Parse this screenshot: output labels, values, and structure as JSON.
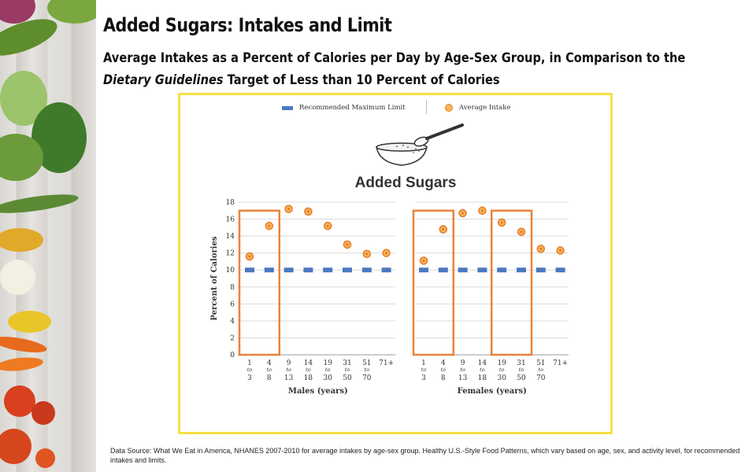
{
  "title": "Added Sugars: Intakes and Limit",
  "subtitle_pre": "Average Intakes as a Percent of Calories per Day by Age-Sex Group, in Comparison to the ",
  "subtitle_em": "Dietary Guidelines",
  "subtitle_post": " Target of Less than 10 Percent of Calories",
  "legend": {
    "limit": "Recommended Maximum Limit",
    "intake": "Average Intake"
  },
  "source_note": "Data Source: What We Eat in America, NHANES 2007-2010 for average intakes by age-sex group. Healthy U.S.-Style Food Patterns, which vary based on age, sex, and activity level, for recommended intakes and limits.",
  "colors": {
    "limit": "#4a78c2",
    "intake_fill": "#f8b65e",
    "intake_stroke": "#e47b24",
    "highlight": "#e9833a",
    "frame": "#f7df43"
  },
  "chart_data": {
    "type": "scatter",
    "title": "Added Sugars",
    "ylabel": "Percent of Calories",
    "ylim": [
      0,
      18
    ],
    "yticks": [
      0,
      2,
      4,
      6,
      8,
      10,
      12,
      14,
      16,
      18
    ],
    "grid": true,
    "limit_value": 10,
    "panels": [
      {
        "xlabel": "Males (years)",
        "categories": [
          [
            "1",
            "to",
            "3"
          ],
          [
            "4",
            "to",
            "8"
          ],
          [
            "9",
            "to",
            "13"
          ],
          [
            "14",
            "to",
            "18"
          ],
          [
            "19",
            "to",
            "30"
          ],
          [
            "31",
            "to",
            "50"
          ],
          [
            "51",
            "to",
            "70"
          ],
          [
            "71+",
            "",
            ""
          ]
        ],
        "intake": [
          11.6,
          15.2,
          17.2,
          16.9,
          15.2,
          13.0,
          11.9,
          12.0
        ],
        "limit": [
          10,
          10,
          10,
          10,
          10,
          10,
          10,
          10
        ],
        "highlight_groups": [
          [
            0,
            1
          ]
        ]
      },
      {
        "xlabel": "Females (years)",
        "categories": [
          [
            "1",
            "to",
            "3"
          ],
          [
            "4",
            "to",
            "8"
          ],
          [
            "9",
            "to",
            "13"
          ],
          [
            "14",
            "to",
            "18"
          ],
          [
            "19",
            "to",
            "30"
          ],
          [
            "31",
            "to",
            "50"
          ],
          [
            "51",
            "to",
            "70"
          ],
          [
            "71+",
            "",
            ""
          ]
        ],
        "intake": [
          11.1,
          14.8,
          16.7,
          17.0,
          15.6,
          14.5,
          12.5,
          12.3
        ],
        "limit": [
          10,
          10,
          10,
          10,
          10,
          10,
          10,
          10
        ],
        "highlight_groups": [
          [
            0,
            1
          ],
          [
            4,
            5
          ]
        ]
      }
    ]
  }
}
